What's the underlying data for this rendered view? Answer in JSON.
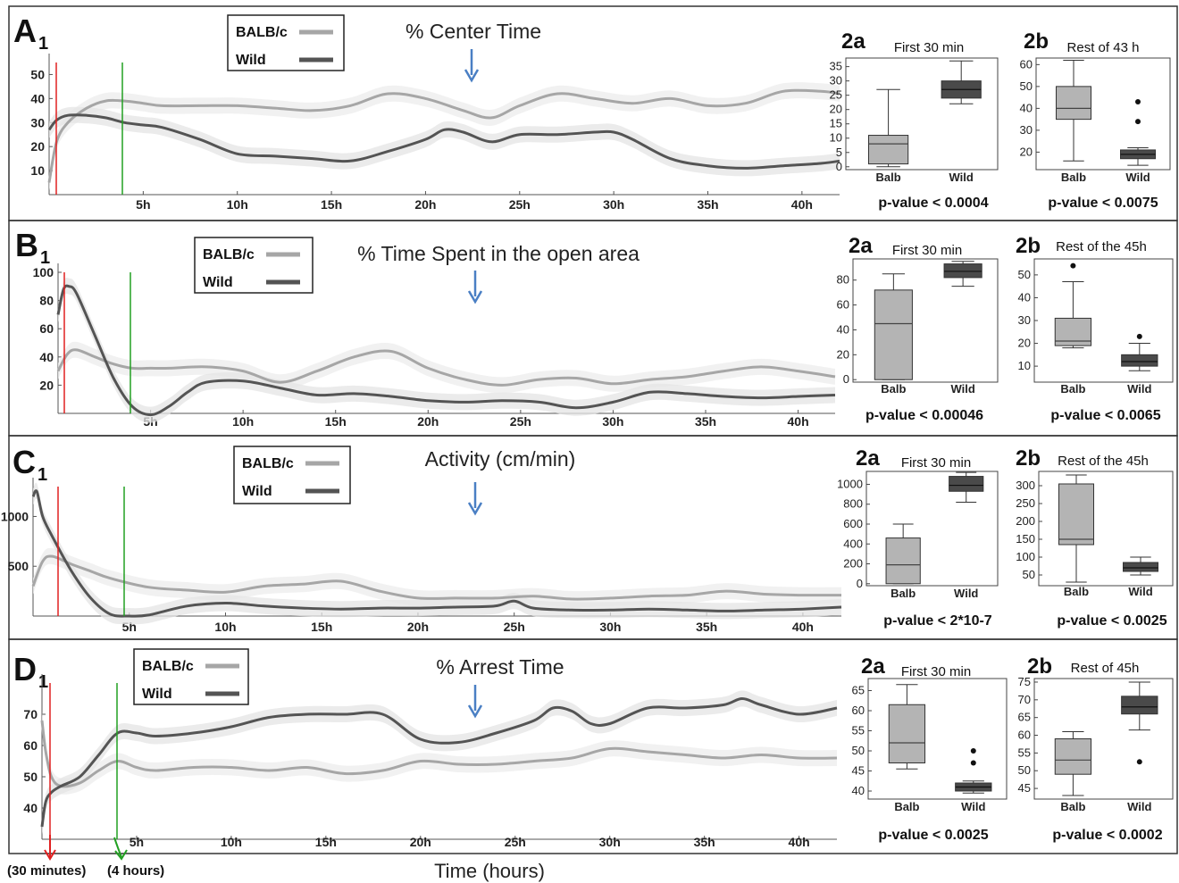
{
  "chart_data": {
    "type": "line",
    "xlabel": "Time (hours)",
    "annotations": [
      "(30 minutes)",
      "(4 hours)"
    ],
    "colors": {
      "balb": "#a6a6a6",
      "wild": "#545454",
      "balb_band": "#ececec",
      "wild_band": "#e4e4e4",
      "marker_30min": "#e02020",
      "marker_4h": "#22a022",
      "arrow": "#4a7fc4"
    },
    "panels": [
      {
        "id": "A",
        "label": "A",
        "sub": "1",
        "title": "% Center Time",
        "legend": [
          "BALB/c",
          "Wild"
        ],
        "x_ticks": [
          "5h",
          "10h",
          "15h",
          "20h",
          "25h",
          "30h",
          "35h",
          "40h"
        ],
        "y_ticks": [
          "10",
          "20",
          "30",
          "40",
          "50"
        ],
        "xlim": [
          0,
          42
        ],
        "ylim": [
          0,
          55
        ],
        "series": [
          {
            "name": "BALB/c",
            "x": [
              0,
              0.4,
              1,
              2,
              3,
              4,
              5,
              6,
              8,
              10,
              12,
              14,
              16,
              18,
              20,
              22,
              23.5,
              25,
              27,
              29,
              31,
              33,
              35,
              37,
              39,
              41,
              42
            ],
            "y": [
              5,
              22,
              30,
              36,
              39,
              39,
              38,
              37,
              37,
              37,
              36,
              35,
              37,
              42,
              40,
              35,
              32,
              37,
              42,
              40,
              38,
              40,
              37,
              38,
              43,
              43,
              42
            ]
          },
          {
            "name": "Wild",
            "x": [
              0,
              0.4,
              1,
              2,
              3,
              4,
              5,
              6,
              8,
              10,
              12,
              14,
              16,
              18,
              20,
              21,
              22,
              23.5,
              25,
              27,
              29,
              30,
              31,
              33,
              35,
              37,
              39,
              41,
              42
            ],
            "y": [
              27,
              31,
              33,
              33,
              32,
              30,
              29,
              28,
              23,
              17,
              16,
              15,
              14,
              18,
              23,
              27,
              26,
              22,
              25,
              25,
              26,
              26,
              23,
              15,
              12,
              11,
              12,
              13,
              14
            ]
          }
        ],
        "box": [
          {
            "label": "2a",
            "title": "First 30 min",
            "y_ticks": [
              "0",
              "5",
              "10",
              "15",
              "20",
              "25",
              "30",
              "35"
            ],
            "ylim": [
              -1,
              38
            ],
            "boxes": [
              {
                "name": "Balb",
                "min": 0,
                "q1": 1,
                "median": 8,
                "q3": 11,
                "max": 27,
                "outliers": []
              },
              {
                "name": "Wild",
                "min": 22,
                "q1": 24,
                "median": 27,
                "q3": 30,
                "max": 37,
                "outliers": []
              }
            ],
            "pvalue": "p-value < 0.0004"
          },
          {
            "label": "2b",
            "title": "Rest of 43 h",
            "y_ticks": [
              "20",
              "30",
              "40",
              "50",
              "60"
            ],
            "ylim": [
              12,
              63
            ],
            "boxes": [
              {
                "name": "Balb",
                "min": 16,
                "q1": 35,
                "median": 40,
                "q3": 50,
                "max": 62,
                "outliers": []
              },
              {
                "name": "Wild",
                "min": 14,
                "q1": 17,
                "median": 19,
                "q3": 21,
                "max": 22,
                "outliers": [
                  34,
                  43
                ]
              }
            ],
            "pvalue": "p-value < 0.0075"
          }
        ]
      },
      {
        "id": "B",
        "label": "B",
        "sub": "1",
        "title": "%  Time Spent in the open area",
        "legend": [
          "BALB/c",
          "Wild"
        ],
        "x_ticks": [
          "5h",
          "10h",
          "15h",
          "20h",
          "25h",
          "30h",
          "35h",
          "40h"
        ],
        "y_ticks": [
          "20",
          "40",
          "60",
          "80",
          "100"
        ],
        "xlim": [
          0,
          42
        ],
        "ylim": [
          0,
          100
        ],
        "series": [
          {
            "name": "BALB/c",
            "x": [
              0,
              0.5,
              1,
              2,
              3,
              4,
              5,
              6,
              8,
              10,
              12,
              14,
              16,
              18,
              20,
              22,
              24,
              26,
              28,
              30,
              32,
              34,
              36,
              38,
              40,
              42
            ],
            "y": [
              30,
              42,
              45,
              40,
              35,
              32,
              32,
              32,
              33,
              30,
              22,
              30,
              40,
              44,
              32,
              24,
              20,
              24,
              25,
              21,
              24,
              26,
              30,
              33,
              30,
              26
            ]
          },
          {
            "name": "Wild",
            "x": [
              0,
              0.3,
              0.6,
              1,
              2,
              3,
              4,
              5,
              6,
              7,
              8,
              10,
              12,
              14,
              16,
              18,
              20,
              22,
              24,
              26,
              28,
              30,
              32,
              34,
              36,
              38,
              40,
              42
            ],
            "y": [
              70,
              88,
              90,
              85,
              55,
              25,
              5,
              -1,
              5,
              15,
              22,
              23,
              18,
              13,
              14,
              12,
              9,
              8,
              9,
              8,
              4,
              8,
              15,
              14,
              12,
              11,
              12,
              13
            ]
          }
        ],
        "box": [
          {
            "label": "2a",
            "title": "First 30 min",
            "y_ticks": [
              "0",
              "20",
              "40",
              "60",
              "80"
            ],
            "ylim": [
              -2,
              97
            ],
            "boxes": [
              {
                "name": "Balb",
                "min": 0,
                "q1": 0,
                "median": 45,
                "q3": 72,
                "max": 85,
                "outliers": []
              },
              {
                "name": "Wild",
                "min": 75,
                "q1": 82,
                "median": 87,
                "q3": 93,
                "max": 95,
                "outliers": []
              }
            ],
            "pvalue": "p-value < 0.00046"
          },
          {
            "label": "2b",
            "title": "Rest of the 45h",
            "y_ticks": [
              "10",
              "20",
              "30",
              "40",
              "50"
            ],
            "ylim": [
              3,
              57
            ],
            "boxes": [
              {
                "name": "Balb",
                "min": 18,
                "q1": 19,
                "median": 21,
                "q3": 31,
                "max": 47,
                "outliers": [
                  54
                ]
              },
              {
                "name": "Wild",
                "min": 8,
                "q1": 10,
                "median": 12,
                "q3": 15,
                "max": 20,
                "outliers": [
                  23
                ]
              }
            ],
            "pvalue": "p-value < 0.0065"
          }
        ]
      },
      {
        "id": "C",
        "label": "C",
        "sub": "1",
        "title": "Activity (cm/min)",
        "legend": [
          "BALB/c",
          "Wild"
        ],
        "x_ticks": [
          "5h",
          "10h",
          "15h",
          "20h",
          "25h",
          "30h",
          "35h",
          "40h"
        ],
        "y_ticks": [
          "500",
          "1000"
        ],
        "xlim": [
          0,
          42
        ],
        "ylim": [
          0,
          1300
        ],
        "series": [
          {
            "name": "BALB/c",
            "x": [
              0,
              0.5,
              1,
              2,
              3,
              4,
              6,
              8,
              10,
              12,
              14,
              16,
              18,
              20,
              22,
              24,
              26,
              28,
              30,
              32,
              34,
              36,
              38,
              40,
              42
            ],
            "y": [
              300,
              550,
              600,
              520,
              450,
              380,
              290,
              260,
              240,
              300,
              320,
              350,
              250,
              180,
              180,
              180,
              200,
              170,
              180,
              200,
              210,
              250,
              220,
              210,
              210
            ]
          },
          {
            "name": "Wild",
            "x": [
              0,
              0.2,
              0.5,
              1,
              2,
              3,
              4,
              5,
              6,
              8,
              10,
              12,
              14,
              16,
              18,
              20,
              22,
              24,
              25,
              26,
              28,
              30,
              32,
              34,
              36,
              38,
              40,
              42
            ],
            "y": [
              1200,
              1250,
              1000,
              800,
              450,
              180,
              20,
              0,
              10,
              100,
              130,
              100,
              80,
              70,
              80,
              80,
              90,
              100,
              150,
              80,
              60,
              60,
              70,
              60,
              50,
              60,
              70,
              90
            ]
          }
        ],
        "box": [
          {
            "label": "2a",
            "title": "First 30 min",
            "y_ticks": [
              "0",
              "200",
              "400",
              "600",
              "800",
              "1000"
            ],
            "ylim": [
              -20,
              1130
            ],
            "boxes": [
              {
                "name": "Balb",
                "min": 0,
                "q1": 0,
                "median": 190,
                "q3": 460,
                "max": 600,
                "outliers": []
              },
              {
                "name": "Wild",
                "min": 820,
                "q1": 930,
                "median": 990,
                "q3": 1080,
                "max": 1120,
                "outliers": []
              }
            ],
            "pvalue": "p-value < 2*10-7"
          },
          {
            "label": "2b",
            "title": "Rest of the 45h",
            "y_ticks": [
              "50",
              "100",
              "150",
              "200",
              "250",
              "300"
            ],
            "ylim": [
              20,
              340
            ],
            "boxes": [
              {
                "name": "Balb",
                "min": 30,
                "q1": 135,
                "median": 150,
                "q3": 305,
                "max": 330,
                "outliers": []
              },
              {
                "name": "Wild",
                "min": 50,
                "q1": 60,
                "median": 70,
                "q3": 85,
                "max": 100,
                "outliers": []
              }
            ],
            "pvalue": "p-value < 0.0025"
          }
        ]
      },
      {
        "id": "D",
        "label": "D",
        "sub": "1",
        "title": "% Arrest Time",
        "legend": [
          "BALB/c",
          "Wild"
        ],
        "x_ticks": [
          "5h",
          "10h",
          "15h",
          "20h",
          "25h",
          "30h",
          "35h",
          "40h"
        ],
        "y_ticks": [
          "40",
          "50",
          "60",
          "70"
        ],
        "xlim": [
          0,
          42
        ],
        "ylim": [
          30,
          80
        ],
        "series": [
          {
            "name": "BALB/c",
            "x": [
              0,
              0.2,
              0.5,
              1,
              2,
              3,
              4,
              5,
              6,
              8,
              10,
              12,
              14,
              16,
              18,
              20,
              22,
              24,
              26,
              28,
              30,
              32,
              34,
              36,
              38,
              40,
              42
            ],
            "y": [
              68,
              58,
              50,
              47,
              48,
              52,
              55,
              53,
              52,
              53,
              53,
              52,
              53,
              51,
              52,
              55,
              54,
              54,
              55,
              56,
              59,
              58,
              57,
              56,
              57,
              56,
              56
            ]
          },
          {
            "name": "Wild",
            "x": [
              0,
              0.2,
              0.5,
              1,
              2,
              3,
              4,
              5,
              6,
              8,
              10,
              12,
              14,
              16,
              18,
              20,
              22,
              24,
              26,
              27,
              28,
              29,
              30,
              32,
              34,
              36,
              37,
              38,
              40,
              42
            ],
            "y": [
              34,
              42,
              45,
              47,
              50,
              57,
              64,
              64,
              63,
              64,
              66,
              69,
              70,
              70,
              70,
              62,
              61,
              64,
              68,
              72,
              71,
              67,
              67,
              72,
              72,
              73,
              75,
              73,
              70,
              72
            ]
          }
        ],
        "box": [
          {
            "label": "2a",
            "title": "First 30 min",
            "y_ticks": [
              "40",
              "45",
              "50",
              "55",
              "60",
              "65"
            ],
            "ylim": [
              38,
              68
            ],
            "boxes": [
              {
                "name": "Balb",
                "min": 45.5,
                "q1": 47,
                "median": 52,
                "q3": 61.5,
                "max": 66.5,
                "outliers": []
              },
              {
                "name": "Wild",
                "min": 39.5,
                "q1": 40,
                "median": 41,
                "q3": 42,
                "max": 42.5,
                "outliers": [
                  47,
                  50
                ]
              }
            ],
            "pvalue": "p-value < 0.0025"
          },
          {
            "label": "2b",
            "title": "Rest of 45h",
            "y_ticks": [
              "45",
              "50",
              "55",
              "60",
              "65",
              "70",
              "75"
            ],
            "ylim": [
              42,
              76
            ],
            "boxes": [
              {
                "name": "Balb",
                "min": 43,
                "q1": 49,
                "median": 53,
                "q3": 59,
                "max": 61,
                "outliers": []
              },
              {
                "name": "Wild",
                "min": 61.5,
                "q1": 66,
                "median": 68,
                "q3": 71,
                "max": 75,
                "outliers": [
                  52.5
                ]
              }
            ],
            "pvalue": "p-value < 0.0002"
          }
        ]
      }
    ]
  }
}
